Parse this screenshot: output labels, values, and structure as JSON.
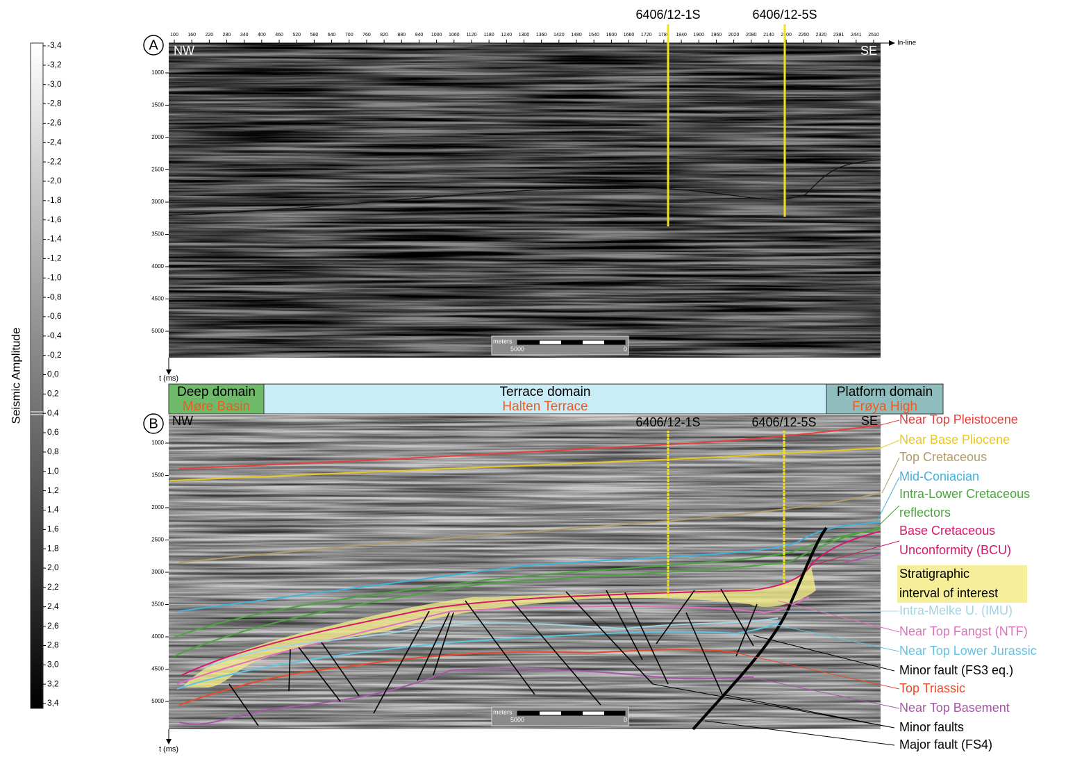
{
  "colorbar": {
    "title": "Seismic Amplitude",
    "labels": [
      "-3,4",
      "-3,2",
      "-3,0",
      "-2,8",
      "-2,6",
      "-2,4",
      "-2,2",
      "-2,0",
      "-1,8",
      "-1,6",
      "-1,4",
      "-1,2",
      "-1,0",
      "-0,8",
      "-0,6",
      "-0,4",
      "-0,2",
      "0,0",
      "0,2",
      "0,4",
      "0,6",
      "0,8",
      "1,0",
      "1,2",
      "1,4",
      "1,6",
      "1,8",
      "2,0",
      "2,2",
      "2,4",
      "2,6",
      "2,8",
      "3,0",
      "3,2",
      "3,4"
    ]
  },
  "panel_a": {
    "label": "A",
    "left": "NW",
    "right": "SE",
    "inline_label": "In-line",
    "inline_ticks": [
      "100",
      "160",
      "220",
      "280",
      "340",
      "400",
      "460",
      "520",
      "580",
      "640",
      "700",
      "760",
      "820",
      "880",
      "940",
      "1000",
      "1060",
      "1120",
      "1180",
      "1240",
      "1300",
      "1360",
      "1420",
      "1480",
      "1540",
      "1600",
      "1660",
      "1720",
      "1780",
      "1840",
      "1900",
      "1960",
      "2020",
      "2080",
      "2140",
      "2200",
      "2260",
      "2320",
      "2381",
      "2441",
      "2510"
    ],
    "time_ticks": [
      "1000",
      "1500",
      "2000",
      "2500",
      "3000",
      "3500",
      "4000",
      "4500",
      "5000"
    ],
    "time_axis": "t (ms)",
    "wells": [
      "6406/12-1S",
      "6406/12-5S"
    ],
    "scale": {
      "unit": "meters",
      "left": "5000",
      "right": "0"
    }
  },
  "domains": [
    {
      "name": "Deep domain",
      "area": "Møre Basin",
      "color": "#6fba6a"
    },
    {
      "name": "Terrace domain",
      "area": "Halten Terrace",
      "color": "#c9ecf7"
    },
    {
      "name": "Platform domain",
      "area": "Frøya High",
      "color": "#8fbcbc"
    }
  ],
  "panel_b": {
    "label": "B",
    "left": "NW",
    "right": "SE",
    "time_ticks": [
      "1000",
      "1500",
      "2000",
      "2500",
      "3000",
      "3500",
      "4000",
      "4500",
      "5000"
    ],
    "time_axis": "t (ms)",
    "wells": [
      "6406/12-1S",
      "6406/12-5S"
    ],
    "scale": {
      "unit": "meters",
      "left": "5000",
      "right": "0"
    }
  },
  "legend": [
    {
      "label": "Near Top Pleistocene",
      "color": "#e5403a"
    },
    {
      "label": "Near Base Pliocene",
      "color": "#e8c81a"
    },
    {
      "label": "Top Cretaceous",
      "color": "#b39a6a"
    },
    {
      "label": "Mid-Coniacian",
      "color": "#3fb2e0"
    },
    {
      "label": "Intra-Lower Cretaceous",
      "color": "#4aa63c"
    },
    {
      "label": "reflectors",
      "color": "#4aa63c"
    },
    {
      "label": "Base Cretaceous",
      "color": "#d6176b"
    },
    {
      "label": "Unconformity (BCU)",
      "color": "#d6176b"
    },
    {
      "label": "Stratigraphic",
      "color": "#000000"
    },
    {
      "label": "interval of interest",
      "color": "#000000"
    },
    {
      "label": "Intra-Melke U. (IMU)",
      "color": "#a4d4e6"
    },
    {
      "label": "Near Top Fangst (NTF)",
      "color": "#e070c0"
    },
    {
      "label": "Near Top Lower Jurassic",
      "color": "#5ec4e6"
    },
    {
      "label": "Minor fault (FS3 eq.)",
      "color": "#000000"
    },
    {
      "label": "Top Triassic",
      "color": "#e84a28"
    },
    {
      "label": "Near Top Basement",
      "color": "#a855a8"
    },
    {
      "label": "Minor faults",
      "color": "#000000"
    },
    {
      "label": "Major fault (FS4)",
      "color": "#000000"
    }
  ]
}
